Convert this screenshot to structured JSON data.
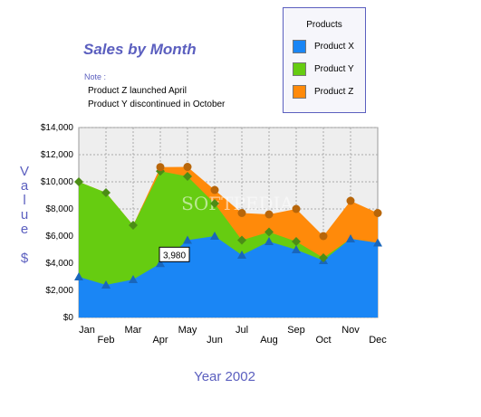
{
  "chart_data": {
    "type": "area",
    "title": "Sales by Month",
    "note_label": "Note :",
    "notes": [
      "Product Z launched April",
      "Product Y discontinued in October"
    ],
    "xlabel": "Year 2002",
    "ylabel": "Value $",
    "ylim": [
      0,
      14000
    ],
    "yticks": [
      "$0",
      "$2,000",
      "$4,000",
      "$6,000",
      "$8,000",
      "$10,000",
      "$12,000",
      "$14,000"
    ],
    "stacked": true,
    "grid": true,
    "legend_title": "Products",
    "legend_position": "top-right",
    "categories": [
      "Jan",
      "Feb",
      "Mar",
      "Apr",
      "May",
      "Jun",
      "Jul",
      "Aug",
      "Sep",
      "Oct",
      "Nov",
      "Dec"
    ],
    "series": [
      {
        "name": "Product X",
        "color": "#1a86f5",
        "marker": "triangle",
        "values": [
          3000,
          2400,
          2800,
          3980,
          5700,
          6000,
          4600,
          5600,
          5000,
          4200,
          5800,
          5500
        ]
      },
      {
        "name": "Product Y",
        "color": "#66cc11",
        "marker": "diamond",
        "values": [
          7000,
          6800,
          4000,
          6800,
          4700,
          2400,
          1100,
          700,
          600,
          200,
          0,
          0
        ]
      },
      {
        "name": "Product Z",
        "color": "#ff8a0a",
        "marker": "circle",
        "values": [
          0,
          0,
          0,
          300,
          700,
          1000,
          2000,
          1300,
          2400,
          1600,
          2800,
          2200
        ]
      }
    ],
    "annotation": {
      "label": "3,980",
      "series": "Product X",
      "category": "Apr"
    },
    "watermark": "SOFTPEDIA"
  }
}
